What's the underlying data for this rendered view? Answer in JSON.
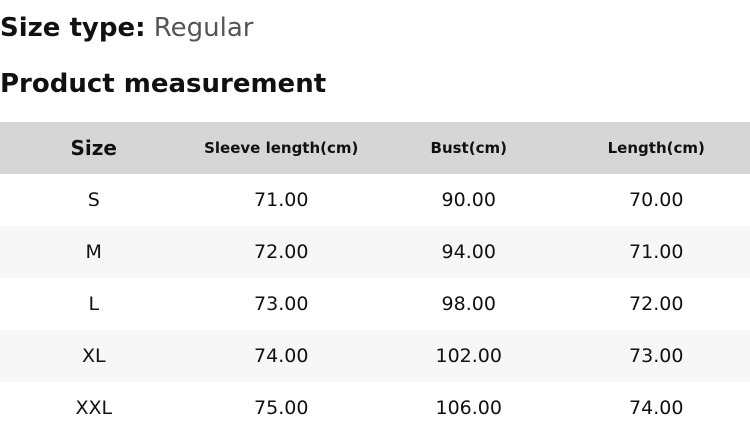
{
  "size_type": {
    "label": "Size type:",
    "value": "Regular"
  },
  "section_title": "Product measurement",
  "table": {
    "headers": [
      "Size",
      "Sleeve length(cm)",
      "Bust(cm)",
      "Length(cm)"
    ],
    "rows": [
      [
        "S",
        "71.00",
        "90.00",
        "70.00"
      ],
      [
        "M",
        "72.00",
        "94.00",
        "71.00"
      ],
      [
        "L",
        "73.00",
        "98.00",
        "72.00"
      ],
      [
        "XL",
        "74.00",
        "102.00",
        "73.00"
      ],
      [
        "XXL",
        "75.00",
        "106.00",
        "74.00"
      ]
    ]
  },
  "colors": {
    "header_bg": "#d6d6d6",
    "stripe_bg": "#f7f7f7"
  }
}
